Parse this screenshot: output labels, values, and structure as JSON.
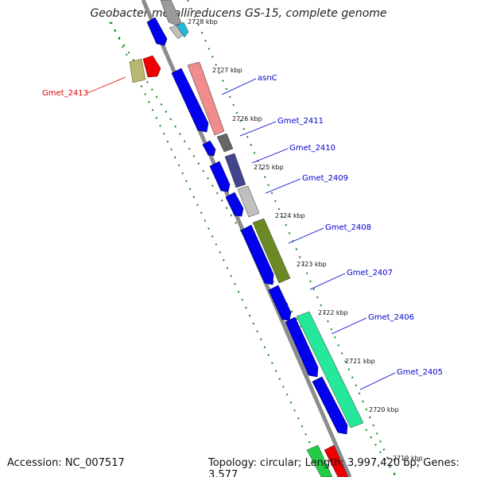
{
  "title": "Geobacter metallireducens GS-15, complete genome",
  "footer": {
    "accession": "Accession: NC_007517",
    "topology": "Topology: circular; Length: 3,997,420 bp; Genes: 3,577"
  },
  "colors": {
    "backbone": "#8c8c8c",
    "ruler": "#118811",
    "forward_cds": "#0000ee",
    "label_default": "#0000cc",
    "label_highlight": "#dd0000"
  },
  "kbp_ticks": [
    "2728 kbp",
    "2727 kbp",
    "2726 kbp",
    "2725 kbp",
    "2724 kbp",
    "2723 kbp",
    "2722 kbp",
    "2721 kbp",
    "2720 kbp",
    "2719 kbp"
  ],
  "genes": [
    {
      "label": "asnC",
      "color": "#f08c8c"
    },
    {
      "label": "Gmet_2411",
      "color": "#666666"
    },
    {
      "label": "Gmet_2410",
      "color": "#44448c"
    },
    {
      "label": "Gmet_2409",
      "color": "#c0c0c0"
    },
    {
      "label": "Gmet_2408",
      "color": "#6b8a24"
    },
    {
      "label": "Gmet_2407",
      "color": "#6b8a24"
    },
    {
      "label": "Gmet_2406",
      "color": "#26e89a"
    },
    {
      "label": "Gmet_2405",
      "color": "#26e89a"
    },
    {
      "label": "Gmet_2413",
      "color": "#b8b870"
    }
  ]
}
